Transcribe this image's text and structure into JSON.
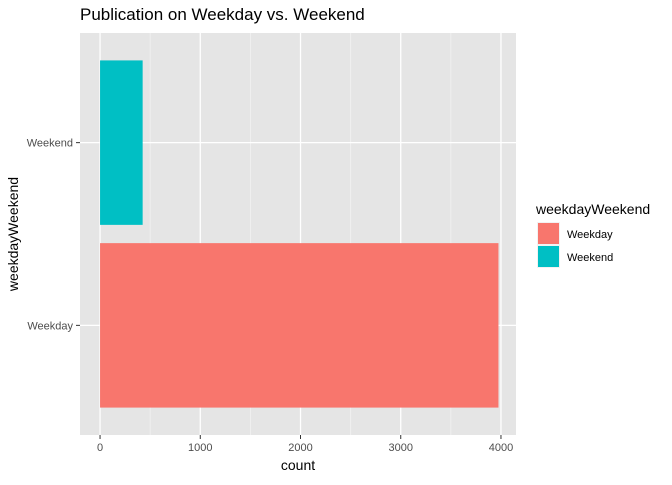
{
  "chart_data": {
    "type": "bar",
    "orientation": "horizontal",
    "title": "Publication on Weekday vs. Weekend",
    "xlabel": "count",
    "ylabel": "weekdayWeekend",
    "categories": [
      "Weekday",
      "Weekend"
    ],
    "values": [
      3975,
      425
    ],
    "colors": [
      "#F8766D",
      "#00BFC4"
    ],
    "xlim": [
      -200,
      4150
    ],
    "xticks": [
      0,
      1000,
      2000,
      3000,
      4000
    ],
    "grid": true,
    "legend": {
      "title": "weekdayWeekend",
      "placement": "right",
      "entries": [
        "Weekday",
        "Weekend"
      ]
    },
    "panel_background": "#E5E5E5"
  }
}
